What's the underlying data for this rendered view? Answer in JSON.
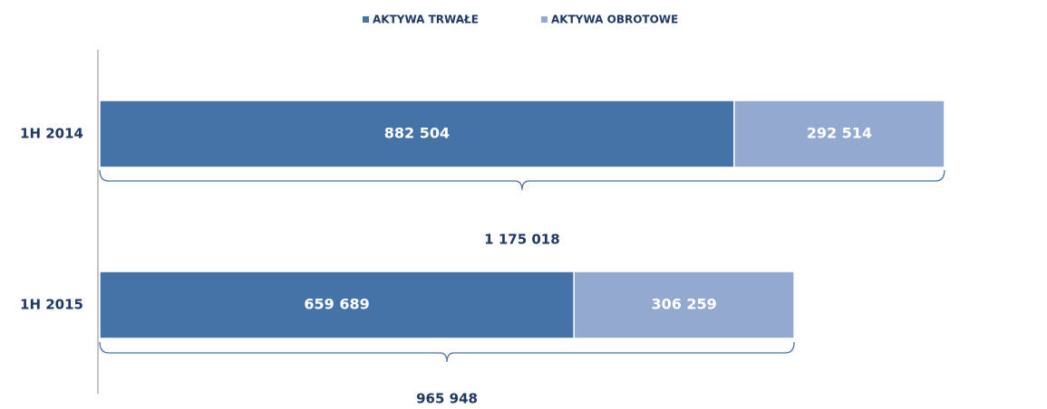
{
  "chart_data": {
    "type": "stacked-barh",
    "categories": [
      "1H 2014",
      "1H 2015"
    ],
    "series": [
      {
        "name": "AKTYWA TRWAŁE",
        "color": "#4673a7",
        "values": [
          882504,
          659689
        ],
        "value_labels": [
          "882 504",
          "659 689"
        ]
      },
      {
        "name": "AKTYWA OBROTOWE",
        "color": "#94a9d0",
        "values": [
          292514,
          306259
        ],
        "value_labels": [
          "292 514",
          "306 259"
        ]
      }
    ],
    "totals": {
      "values": [
        1175018,
        965948
      ],
      "value_labels": [
        "1 175 018",
        "965 948"
      ]
    },
    "xlim": [
      0,
      1300000
    ],
    "legend": "top"
  }
}
